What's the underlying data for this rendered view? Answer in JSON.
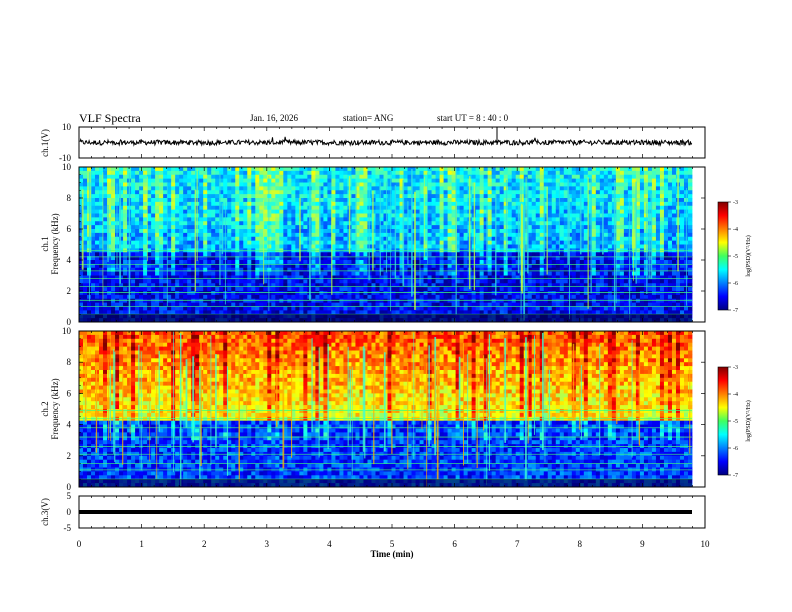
{
  "header": {
    "title": "VLF Spectra",
    "date": "Jan. 16, 2026",
    "station": "station= ANG",
    "start_ut": "start  UT =   8  : 40 : 0"
  },
  "chart_data": [
    {
      "type": "line",
      "panel": "ch1-waveform",
      "ylabel": "ch.1(V)",
      "ylim": [
        -10,
        10
      ],
      "yticks": [
        "10",
        "-10"
      ],
      "xlim": [
        0,
        10
      ],
      "baseline": 0,
      "description_series": "broadband noise waveform around 0 V"
    },
    {
      "type": "heatmap",
      "panel": "ch1-spectrogram",
      "ylabel_channel": "ch.1",
      "ylabel": "Frequency (kHz)",
      "ylim": [
        0,
        10
      ],
      "yticks": [
        "0",
        "2",
        "4",
        "6",
        "8",
        "10"
      ],
      "xlim": [
        0,
        10
      ],
      "colorbar_label": "log(PSD)(V²/Hz)",
      "colorbar_ticks": [
        "-3",
        "-4",
        "-5",
        "-6",
        "-7"
      ],
      "clim": [
        -7,
        -3
      ]
    },
    {
      "type": "heatmap",
      "panel": "ch2-spectrogram",
      "ylabel_channel": "ch.2",
      "ylabel": "Frequency (kHz)",
      "ylim": [
        0,
        10
      ],
      "yticks": [
        "0",
        "2",
        "4",
        "6",
        "8",
        "10"
      ],
      "xlim": [
        0,
        10
      ],
      "colorbar_label": "log(PSD)(V²/Hz)",
      "colorbar_ticks": [
        "-3",
        "-4",
        "-5",
        "-6",
        "-7"
      ],
      "clim": [
        -7,
        -3
      ]
    },
    {
      "type": "line",
      "panel": "ch3-waveform",
      "ylabel": "ch.3(V)",
      "ylim": [
        -5,
        5
      ],
      "yticks": [
        "5",
        "0",
        "-5"
      ],
      "xlim": [
        0,
        10
      ],
      "baseline": -1,
      "xlabel": "Time (min)",
      "xticks": [
        "0",
        "1",
        "2",
        "3",
        "4",
        "5",
        "6",
        "7",
        "8",
        "9",
        "10"
      ]
    }
  ]
}
